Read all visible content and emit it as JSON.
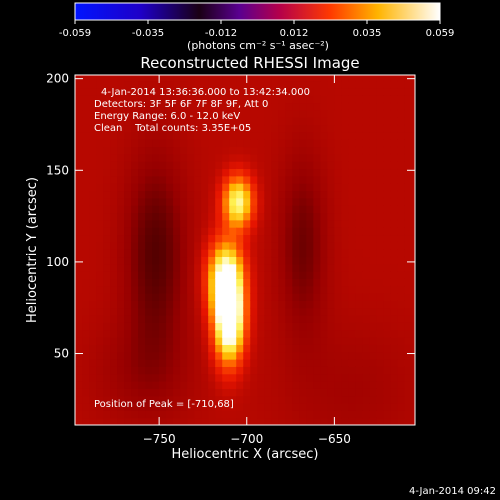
{
  "chart_data": {
    "type": "heatmap",
    "title": "Reconstructed RHESSI Image",
    "xlabel": "Heliocentric X (arcsec)",
    "ylabel": "Heliocentric Y (arcsec)",
    "xlim": [
      -798,
      -604
    ],
    "ylim": [
      11,
      202
    ],
    "xticks": [
      -750,
      -700,
      -650
    ],
    "yticks": [
      50,
      100,
      150,
      200
    ],
    "colorbar": {
      "ticks": [
        "-0.059",
        "-0.035",
        "-0.012",
        "0.012",
        "0.035",
        "0.059"
      ],
      "range": [
        -0.059,
        0.059
      ],
      "units": "(photons cm⁻² s⁻¹ asec⁻²)",
      "colormap": "IDL red temperature (blue-black-red-yellow-white)"
    },
    "info_lines": [
      "4-Jan-2014 13:36:36.000 to 13:42:34.000",
      "Detectors: 3F 5F 6F 7F 8F 9F, Att 0",
      "Energy Range: 6.0 - 12.0 keV",
      "Clean    Total counts: 3.35E+05"
    ],
    "peak_text": "Position of Peak = [-710,68]",
    "sources": [
      {
        "x": -710,
        "y": 68,
        "peak": 0.059,
        "sigma_x": 6,
        "sigma_y": 16
      },
      {
        "x": -712,
        "y": 92,
        "peak": 0.045,
        "sigma_x": 7,
        "sigma_y": 14
      },
      {
        "x": -705,
        "y": 133,
        "peak": 0.042,
        "sigma_x": 6,
        "sigma_y": 10
      }
    ],
    "colors": {
      "background": "#000000",
      "axis": "#ffffff"
    }
  },
  "footer": {
    "timestamp": "4-Jan-2014 09:42"
  }
}
